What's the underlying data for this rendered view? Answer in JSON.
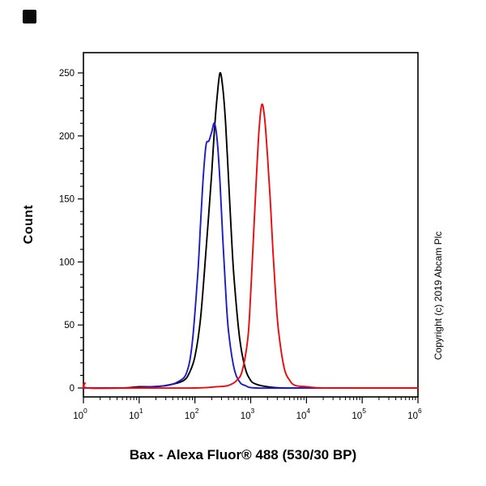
{
  "figure": {
    "title": "Bax - Alexa Fluor® 488 (530/30 BP)",
    "ylabel": "Count",
    "copyright": "Copyright (c) 2019 Abcam Plc"
  },
  "chart_data": {
    "type": "line",
    "title": "Bax - Alexa Fluor® 488 (530/30 BP)",
    "xlabel": "Bax - Alexa Fluor® 488 (530/30 BP)",
    "ylabel": "Count",
    "x_scale": "log10",
    "x_range_log10": [
      0,
      6
    ],
    "x_tick_exponents": [
      0,
      1,
      2,
      3,
      4,
      5,
      6
    ],
    "y_ticks": [
      0,
      50,
      100,
      150,
      200,
      250
    ],
    "y_minor_step": 10,
    "ylim": [
      0,
      265
    ],
    "grid": false,
    "legend": "none",
    "frame_color": "#000000",
    "series": [
      {
        "name": "black-curve",
        "color": "#000000",
        "peak_x_log10": 2.45,
        "peak_count": 250,
        "points_log10x_count": [
          [
            0,
            0
          ],
          [
            0.7,
            0
          ],
          [
            1.0,
            1
          ],
          [
            1.3,
            1
          ],
          [
            1.6,
            3
          ],
          [
            1.8,
            6
          ],
          [
            1.9,
            12
          ],
          [
            2.0,
            25
          ],
          [
            2.1,
            55
          ],
          [
            2.2,
            110
          ],
          [
            2.3,
            170
          ],
          [
            2.35,
            205
          ],
          [
            2.4,
            232
          ],
          [
            2.45,
            250
          ],
          [
            2.5,
            238
          ],
          [
            2.55,
            210
          ],
          [
            2.6,
            168
          ],
          [
            2.65,
            125
          ],
          [
            2.7,
            88
          ],
          [
            2.8,
            40
          ],
          [
            2.9,
            16
          ],
          [
            3.0,
            6
          ],
          [
            3.1,
            3
          ],
          [
            3.3,
            1
          ],
          [
            3.6,
            0
          ],
          [
            4.5,
            0
          ],
          [
            6,
            0
          ]
        ]
      },
      {
        "name": "blue-curve",
        "color": "#1b1bc8",
        "peak_x_log10": 2.35,
        "peak_count": 210,
        "points_log10x_count": [
          [
            0,
            0
          ],
          [
            0.8,
            0
          ],
          [
            1.2,
            1
          ],
          [
            1.5,
            2
          ],
          [
            1.7,
            5
          ],
          [
            1.85,
            12
          ],
          [
            1.95,
            35
          ],
          [
            2.05,
            90
          ],
          [
            2.1,
            130
          ],
          [
            2.15,
            168
          ],
          [
            2.2,
            193
          ],
          [
            2.25,
            196
          ],
          [
            2.3,
            203
          ],
          [
            2.35,
            210
          ],
          [
            2.4,
            196
          ],
          [
            2.45,
            163
          ],
          [
            2.5,
            118
          ],
          [
            2.55,
            78
          ],
          [
            2.6,
            46
          ],
          [
            2.7,
            16
          ],
          [
            2.8,
            5
          ],
          [
            2.9,
            2
          ],
          [
            3.1,
            0
          ],
          [
            4.0,
            0
          ],
          [
            6,
            0
          ]
        ]
      },
      {
        "name": "red-curve",
        "color": "#ee0a0a",
        "peak_x_log10": 3.2,
        "peak_count": 225,
        "points_log10x_count": [
          [
            0,
            0
          ],
          [
            0.03,
            4
          ],
          [
            0.08,
            0
          ],
          [
            1,
            0
          ],
          [
            2,
            0
          ],
          [
            2.4,
            1
          ],
          [
            2.6,
            2
          ],
          [
            2.75,
            6
          ],
          [
            2.85,
            14
          ],
          [
            2.95,
            40
          ],
          [
            3.0,
            75
          ],
          [
            3.05,
            120
          ],
          [
            3.1,
            165
          ],
          [
            3.15,
            205
          ],
          [
            3.2,
            225
          ],
          [
            3.25,
            214
          ],
          [
            3.3,
            185
          ],
          [
            3.35,
            150
          ],
          [
            3.4,
            108
          ],
          [
            3.45,
            72
          ],
          [
            3.5,
            45
          ],
          [
            3.6,
            16
          ],
          [
            3.7,
            6
          ],
          [
            3.8,
            2
          ],
          [
            4.0,
            1
          ],
          [
            4.3,
            0
          ],
          [
            5,
            0
          ],
          [
            6,
            0
          ]
        ]
      }
    ]
  }
}
